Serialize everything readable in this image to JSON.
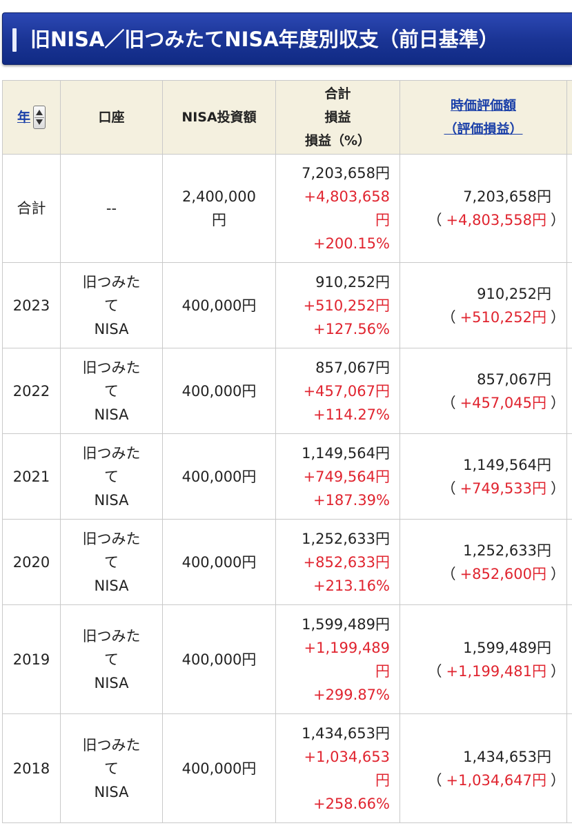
{
  "title": "旧NISA／旧つみたてNISA年度別収支（前日基準）",
  "colors": {
    "title_bg": "#1b3596",
    "header_bg": "#f4f0df",
    "positive": "#e0242f",
    "link": "#1a3fa8"
  },
  "headers": {
    "year": "年",
    "account": "口座",
    "invested": "NISA投資額",
    "total_line1": "合計",
    "total_line2": "損益",
    "total_line3": "損益（%）",
    "market_line1": "時価評価額",
    "market_line2": "（評価損益）"
  },
  "rows": [
    {
      "year": "合計",
      "account": [
        "--"
      ],
      "invested": [
        "2,400,000",
        "円"
      ],
      "total": [
        "7,203,658円"
      ],
      "gain": [
        "+4,803,658",
        "円"
      ],
      "pct": "+200.15%",
      "value": "7,203,658円",
      "open": "（",
      "eval": "+4,803,558円",
      "close": "）"
    },
    {
      "year": "2023",
      "account": [
        "旧つみた",
        "て",
        "NISA"
      ],
      "invested": [
        "400,000円"
      ],
      "total": [
        "910,252円"
      ],
      "gain": [
        "+510,252円"
      ],
      "pct": "+127.56%",
      "value": "910,252円",
      "open": "（",
      "eval": "+510,252円",
      "close": "）"
    },
    {
      "year": "2022",
      "account": [
        "旧つみた",
        "て",
        "NISA"
      ],
      "invested": [
        "400,000円"
      ],
      "total": [
        "857,067円"
      ],
      "gain": [
        "+457,067円"
      ],
      "pct": "+114.27%",
      "value": "857,067円",
      "open": "（",
      "eval": "+457,045円",
      "close": "）"
    },
    {
      "year": "2021",
      "account": [
        "旧つみた",
        "て",
        "NISA"
      ],
      "invested": [
        "400,000円"
      ],
      "total": [
        "1,149,564円"
      ],
      "gain": [
        "+749,564円"
      ],
      "pct": "+187.39%",
      "value": "1,149,564円",
      "open": "（",
      "eval": "+749,533円",
      "close": "）"
    },
    {
      "year": "2020",
      "account": [
        "旧つみた",
        "て",
        "NISA"
      ],
      "invested": [
        "400,000円"
      ],
      "total": [
        "1,252,633円"
      ],
      "gain": [
        "+852,633円"
      ],
      "pct": "+213.16%",
      "value": "1,252,633円",
      "open": "（",
      "eval": "+852,600円",
      "close": "）"
    },
    {
      "year": "2019",
      "account": [
        "旧つみた",
        "て",
        "NISA"
      ],
      "invested": [
        "400,000円"
      ],
      "total": [
        "1,599,489円"
      ],
      "gain": [
        "+1,199,489",
        "円"
      ],
      "pct": "+299.87%",
      "value": "1,599,489円",
      "open": "（",
      "eval": "+1,199,481円",
      "close": "）"
    },
    {
      "year": "2018",
      "account": [
        "旧つみた",
        "て",
        "NISA"
      ],
      "invested": [
        "400,000円"
      ],
      "total": [
        "1,434,653円"
      ],
      "gain": [
        "+1,034,653",
        "円"
      ],
      "pct": "+258.66%",
      "value": "1,434,653円",
      "open": "（",
      "eval": "+1,034,647円",
      "close": "）"
    }
  ]
}
